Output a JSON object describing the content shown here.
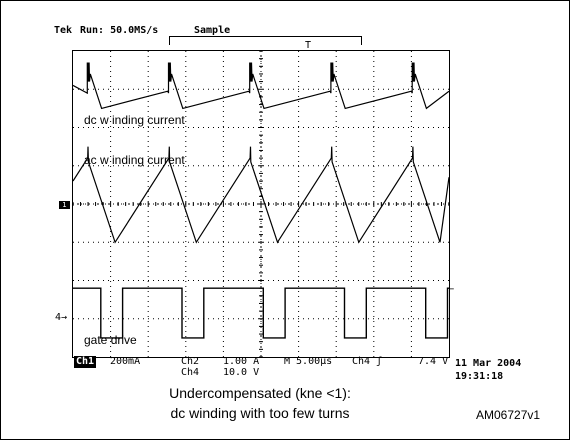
{
  "header": {
    "brand": "Tek",
    "status": "Run: 50.0MS/s",
    "mode": "Sample",
    "trigger_marker": "T"
  },
  "traces": {
    "dc_label": "dc w inding current",
    "ac_label": "ac w inding current",
    "gate_label": "gate drive"
  },
  "markers": {
    "ch1_marker": "1",
    "ch4_marker": "4→",
    "trigger_arrow": "←"
  },
  "readout": {
    "ch1_badge": "Ch1",
    "ch1_scale": "200mA",
    "ch2_label": "Ch2",
    "ch2_scale": "1.00 A",
    "ch4_label": "Ch4",
    "ch4_scale": "10.0 V",
    "timebase": "M 5.00µs",
    "trigger_source": "Ch4 ʃ",
    "trigger_level": "7.4 V",
    "date": "11 Mar 2004",
    "time": "19:31:18"
  },
  "caption": {
    "line1": "Undercompensated (kne <1):",
    "line2": "dc winding with too few  turns"
  },
  "figure_code": "AM06727v1",
  "chart_data": {
    "type": "line",
    "grid": {
      "divisions_x": 10,
      "divisions_y": 8
    },
    "x": {
      "unit": "µs",
      "per_division": 5.0,
      "range": [
        0,
        50
      ],
      "period": 10.8
    },
    "series": [
      {
        "name": "dc w inding current",
        "shape": "sawtooth",
        "rising_edge_times": [
          2.0,
          12.8,
          23.6,
          34.4,
          45.2
        ],
        "level_div_from_top": [
          0.5,
          1.5
        ]
      },
      {
        "name": "ac w inding current",
        "shape": "triangle",
        "peak_times": [
          2.0,
          12.8,
          23.6,
          34.4,
          45.2
        ],
        "level_div_from_top": [
          2.9,
          5.0
        ]
      },
      {
        "name": "gate drive",
        "shape": "square",
        "low_start_times": [
          3.7,
          14.5,
          25.3,
          36.1,
          46.9
        ],
        "low_duration": 2.9,
        "level_div_from_top": [
          6.2,
          7.5
        ]
      }
    ]
  }
}
